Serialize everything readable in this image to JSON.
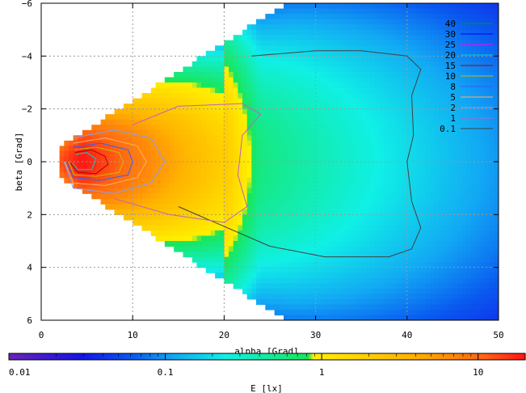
{
  "chart_data": {
    "type": "heatmap",
    "xlabel": "alpha [Grad]",
    "ylabel": "beta [Grad]",
    "xlim": [
      0,
      50
    ],
    "ylim": [
      -6,
      6
    ],
    "y_axis_direction": "downward",
    "x_ticks": [
      0,
      10,
      20,
      30,
      40,
      50
    ],
    "y_ticks": [
      -6,
      -4,
      -2,
      0,
      2,
      4,
      6
    ],
    "grid": true,
    "colorbar": {
      "label": "E [lx]",
      "scale": "log",
      "range": [
        0.01,
        20
      ],
      "ticks": [
        {
          "value": 0.01,
          "label": "0.01"
        },
        {
          "value": 0.1,
          "label": "0.1"
        },
        {
          "value": 1,
          "label": "1"
        },
        {
          "value": 10,
          "label": "10"
        }
      ],
      "colors": [
        "#6a24b4",
        "#1414e6",
        "#0a5af0",
        "#12a8f4",
        "#10f0e6",
        "#18e65a",
        "#fff000",
        "#ffb400",
        "#ff6414",
        "#ff1414"
      ],
      "color_positions": [
        0.0,
        0.14,
        0.24,
        0.32,
        0.42,
        0.58,
        0.59,
        0.78,
        0.92,
        1.0
      ]
    },
    "legend": {
      "placement": "top-right",
      "entries": [
        {
          "name": "40",
          "color": "#00a000"
        },
        {
          "name": "30",
          "color": "#0000ff"
        },
        {
          "name": "25",
          "color": "#ff00ff"
        },
        {
          "name": "20",
          "color": "#00d0d0"
        },
        {
          "name": "15",
          "color": "#b00000"
        },
        {
          "name": "10",
          "color": "#c0c000"
        },
        {
          "name": "8",
          "color": "#3060ff"
        },
        {
          "name": "5",
          "color": "#ffb060"
        },
        {
          "name": "2",
          "color": "#80a0ff"
        },
        {
          "name": "1",
          "color": "#c060c0"
        },
        {
          "name": "0.1",
          "color": "#404040"
        }
      ]
    },
    "series": [
      {
        "name": "0.1",
        "color": "#404040",
        "points": [
          [
            23.0,
            -4.0
          ],
          [
            30.0,
            -4.2
          ],
          [
            35.0,
            -4.2
          ],
          [
            40.0,
            -4.0
          ],
          [
            41.5,
            -3.5
          ],
          [
            40.5,
            -2.5
          ],
          [
            40.7,
            -1.0
          ],
          [
            40.0,
            0.0
          ],
          [
            40.5,
            1.5
          ],
          [
            41.5,
            2.5
          ],
          [
            40.5,
            3.3
          ],
          [
            38.0,
            3.6
          ],
          [
            31.0,
            3.6
          ],
          [
            25.0,
            3.2
          ],
          [
            15.0,
            1.7
          ]
        ]
      },
      {
        "name": "1",
        "color": "#c060c0",
        "points": [
          [
            10.0,
            -1.4
          ],
          [
            15.0,
            -2.1
          ],
          [
            22.0,
            -2.2
          ],
          [
            24.0,
            -1.8
          ],
          [
            22.0,
            -1.0
          ],
          [
            21.5,
            0.5
          ],
          [
            22.5,
            1.7
          ],
          [
            20.0,
            2.3
          ],
          [
            14.0,
            2.0
          ],
          [
            8.0,
            1.4
          ]
        ]
      },
      {
        "name": "2",
        "color": "#80a0ff",
        "points": [
          [
            3.5,
            -0.9
          ],
          [
            8.0,
            -1.2
          ],
          [
            12.0,
            -0.9
          ],
          [
            13.5,
            0.0
          ],
          [
            12.0,
            0.8
          ],
          [
            8.0,
            1.2
          ],
          [
            3.5,
            1.0
          ],
          [
            2.5,
            0.0
          ]
        ]
      },
      {
        "name": "5",
        "color": "#ffb060",
        "points": [
          [
            3.5,
            -0.7
          ],
          [
            7.0,
            -0.9
          ],
          [
            10.5,
            -0.6
          ],
          [
            11.5,
            0.0
          ],
          [
            10.5,
            0.6
          ],
          [
            7.0,
            0.9
          ],
          [
            3.5,
            0.8
          ],
          [
            2.6,
            0.0
          ]
        ]
      },
      {
        "name": "8",
        "color": "#3060ff",
        "points": [
          [
            3.5,
            -0.55
          ],
          [
            6.5,
            -0.7
          ],
          [
            9.5,
            -0.45
          ],
          [
            10.0,
            0.0
          ],
          [
            9.5,
            0.5
          ],
          [
            6.5,
            0.7
          ],
          [
            3.5,
            0.6
          ],
          [
            2.8,
            0.0
          ]
        ]
      },
      {
        "name": "10",
        "color": "#c0c000",
        "points": [
          [
            3.6,
            -0.45
          ],
          [
            6.0,
            -0.55
          ],
          [
            8.5,
            -0.35
          ],
          [
            9.0,
            0.0
          ],
          [
            8.5,
            0.4
          ],
          [
            6.0,
            0.55
          ],
          [
            3.6,
            0.5
          ],
          [
            3.0,
            0.0
          ]
        ]
      },
      {
        "name": "15",
        "color": "#b00000",
        "points": [
          [
            3.7,
            -0.35
          ],
          [
            5.5,
            -0.45
          ],
          [
            7.0,
            -0.2
          ],
          [
            7.3,
            0.1
          ],
          [
            6.0,
            0.45
          ],
          [
            4.0,
            0.4
          ],
          [
            3.2,
            0.05
          ]
        ]
      },
      {
        "name": "20",
        "color": "#00d0d0",
        "points": [
          [
            3.8,
            -0.28
          ],
          [
            5.0,
            -0.35
          ],
          [
            6.0,
            -0.1
          ],
          [
            5.5,
            0.3
          ],
          [
            4.0,
            0.3
          ],
          [
            3.4,
            0.05
          ]
        ]
      }
    ]
  }
}
